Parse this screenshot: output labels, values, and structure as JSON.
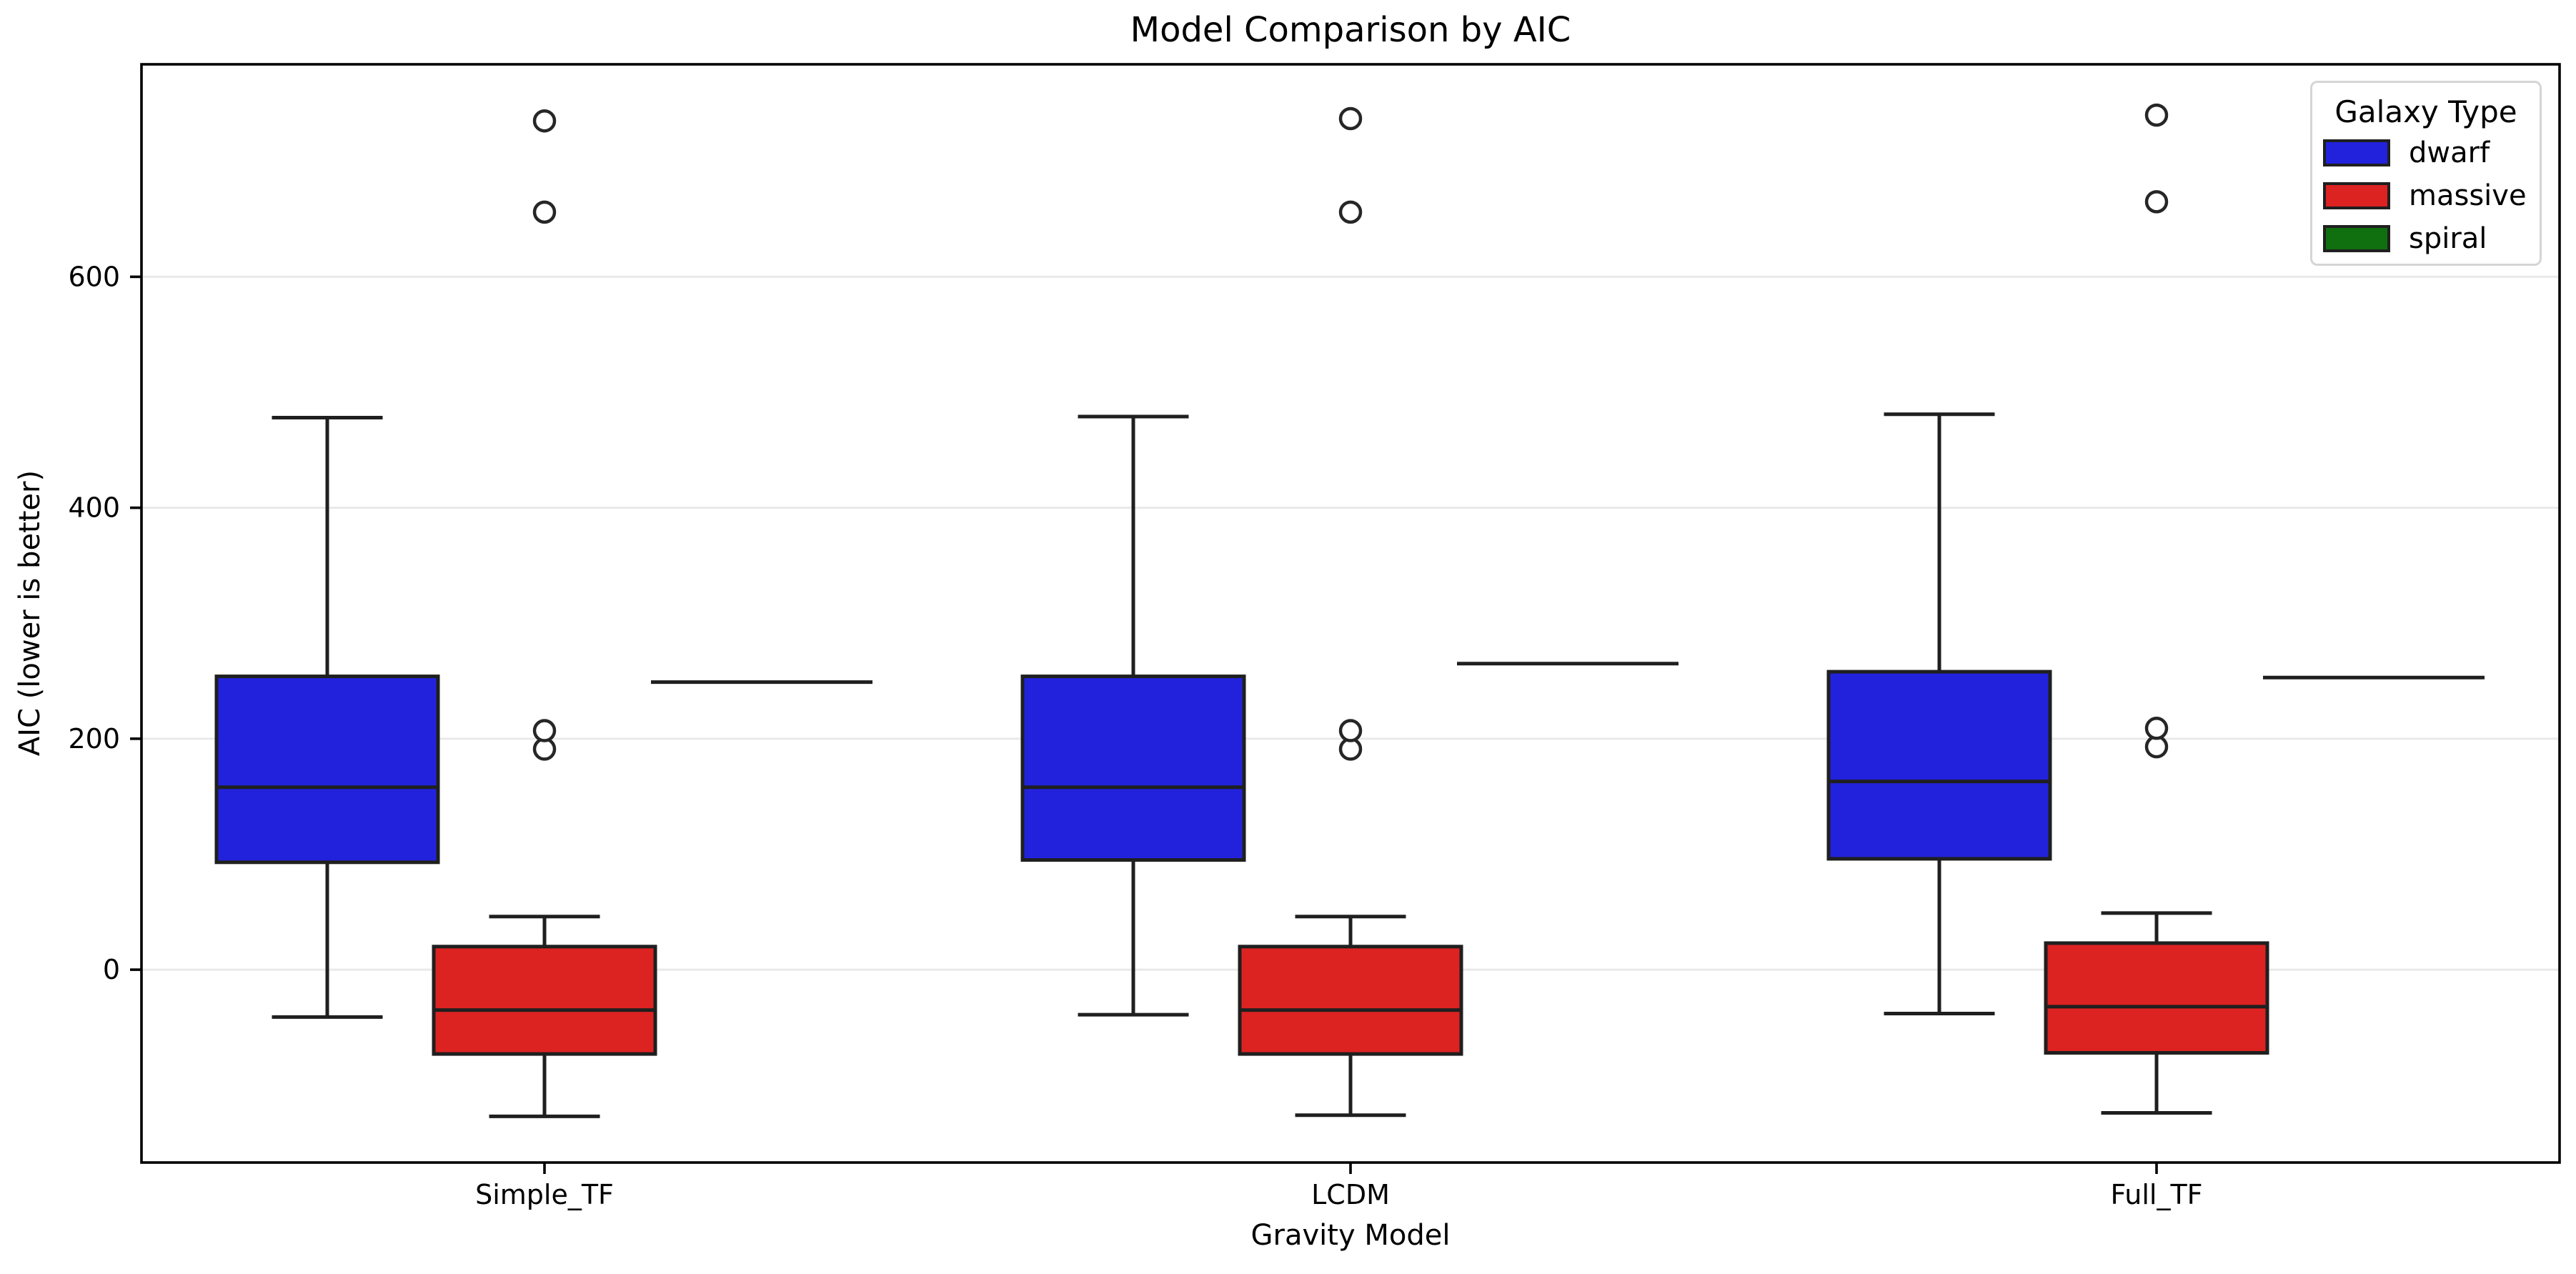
{
  "title": "Model Comparison by AIC",
  "legend": {
    "title": "Galaxy Type",
    "entries": [
      {
        "label": "dwarf",
        "color": "#2222dd"
      },
      {
        "label": "massive",
        "color": "#dd2222"
      },
      {
        "label": "spiral",
        "color": "#107010"
      }
    ]
  },
  "colors": {
    "box_edge": "#1f1f1f",
    "whisker": "#1f1f1f",
    "flier_edge": "#262626",
    "grid": "#e9e9e9",
    "spine": "#000000",
    "background": "#ffffff"
  },
  "chart_data": {
    "type": "box",
    "title": "Model Comparison by AIC",
    "xlabel": "Gravity Model",
    "ylabel": "AIC (lower is better)",
    "hue_label": "Galaxy Type",
    "categories": [
      "Simple_TF",
      "LCDM",
      "Full_TF"
    ],
    "yticks": [
      0,
      200,
      400,
      600
    ],
    "ylim": [
      -167,
      784
    ],
    "grid": "horizontal",
    "legend_position": "upper right",
    "series": [
      {
        "name": "dwarf",
        "color": "#2222dd",
        "boxes": [
          {
            "category": "Simple_TF",
            "whislo": -41,
            "q1": 93,
            "med": 158,
            "q3": 254,
            "whishi": 478,
            "fliers": []
          },
          {
            "category": "LCDM",
            "whislo": -39,
            "q1": 95,
            "med": 158,
            "q3": 254,
            "whishi": 479,
            "fliers": []
          },
          {
            "category": "Full_TF",
            "whislo": -38,
            "q1": 96,
            "med": 163,
            "q3": 258,
            "whishi": 481,
            "fliers": []
          }
        ]
      },
      {
        "name": "massive",
        "color": "#dd2222",
        "boxes": [
          {
            "category": "Simple_TF",
            "whislo": -127,
            "q1": -73,
            "med": -35,
            "q3": 20,
            "whishi": 46,
            "fliers": [
              191,
              207,
              656,
              735
            ]
          },
          {
            "category": "LCDM",
            "whislo": -126,
            "q1": -73,
            "med": -35,
            "q3": 20,
            "whishi": 46,
            "fliers": [
              191,
              207,
              656,
              737
            ]
          },
          {
            "category": "Full_TF",
            "whislo": -124,
            "q1": -72,
            "med": -32,
            "q3": 23,
            "whishi": 49,
            "fliers": [
              193,
              209,
              665,
              740
            ]
          }
        ]
      },
      {
        "name": "spiral",
        "color": "#107010",
        "boxes": [
          {
            "category": "Simple_TF",
            "whislo": 249,
            "q1": 249,
            "med": 249,
            "q3": 249,
            "whishi": 249,
            "fliers": []
          },
          {
            "category": "LCDM",
            "whislo": 265,
            "q1": 265,
            "med": 265,
            "q3": 265,
            "whishi": 265,
            "fliers": []
          },
          {
            "category": "Full_TF",
            "whislo": 253,
            "q1": 253,
            "med": 253,
            "q3": 253,
            "whishi": 253,
            "fliers": []
          }
        ]
      }
    ]
  }
}
